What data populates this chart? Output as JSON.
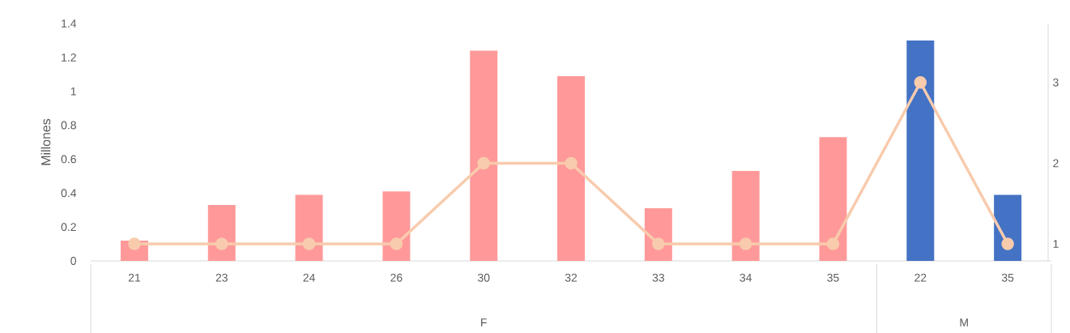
{
  "chart_data": {
    "type": "bar",
    "ylabel": "Millones",
    "categories": [
      "21",
      "23",
      "24",
      "26",
      "30",
      "32",
      "33",
      "34",
      "35",
      "22",
      "35"
    ],
    "series": [
      {
        "color": "#ff9999",
        "values": [
          0.12,
          0.33,
          0.39,
          0.41,
          1.24,
          1.09,
          0.31,
          0.53,
          0.73,
          null,
          null
        ]
      },
      {
        "color": "#4472c4",
        "values": [
          null,
          null,
          null,
          null,
          null,
          null,
          null,
          null,
          null,
          1.3,
          0.39
        ]
      },
      {
        "type": "line",
        "axis": "y2",
        "color": "#f8cbad",
        "values": [
          1,
          1,
          1,
          1,
          2,
          2,
          1,
          1,
          1,
          3,
          1
        ]
      }
    ],
    "ylim": [
      0,
      1.4
    ],
    "yticks": [
      0,
      0.2,
      0.4,
      0.6,
      0.8,
      1,
      1.2,
      1.4
    ],
    "y2lim": [
      0.79,
      3.73
    ],
    "y2ticks": [
      1,
      2,
      3
    ],
    "annotations": [
      "F",
      "M"
    ],
    "marker": "circle",
    "grid": false
  }
}
